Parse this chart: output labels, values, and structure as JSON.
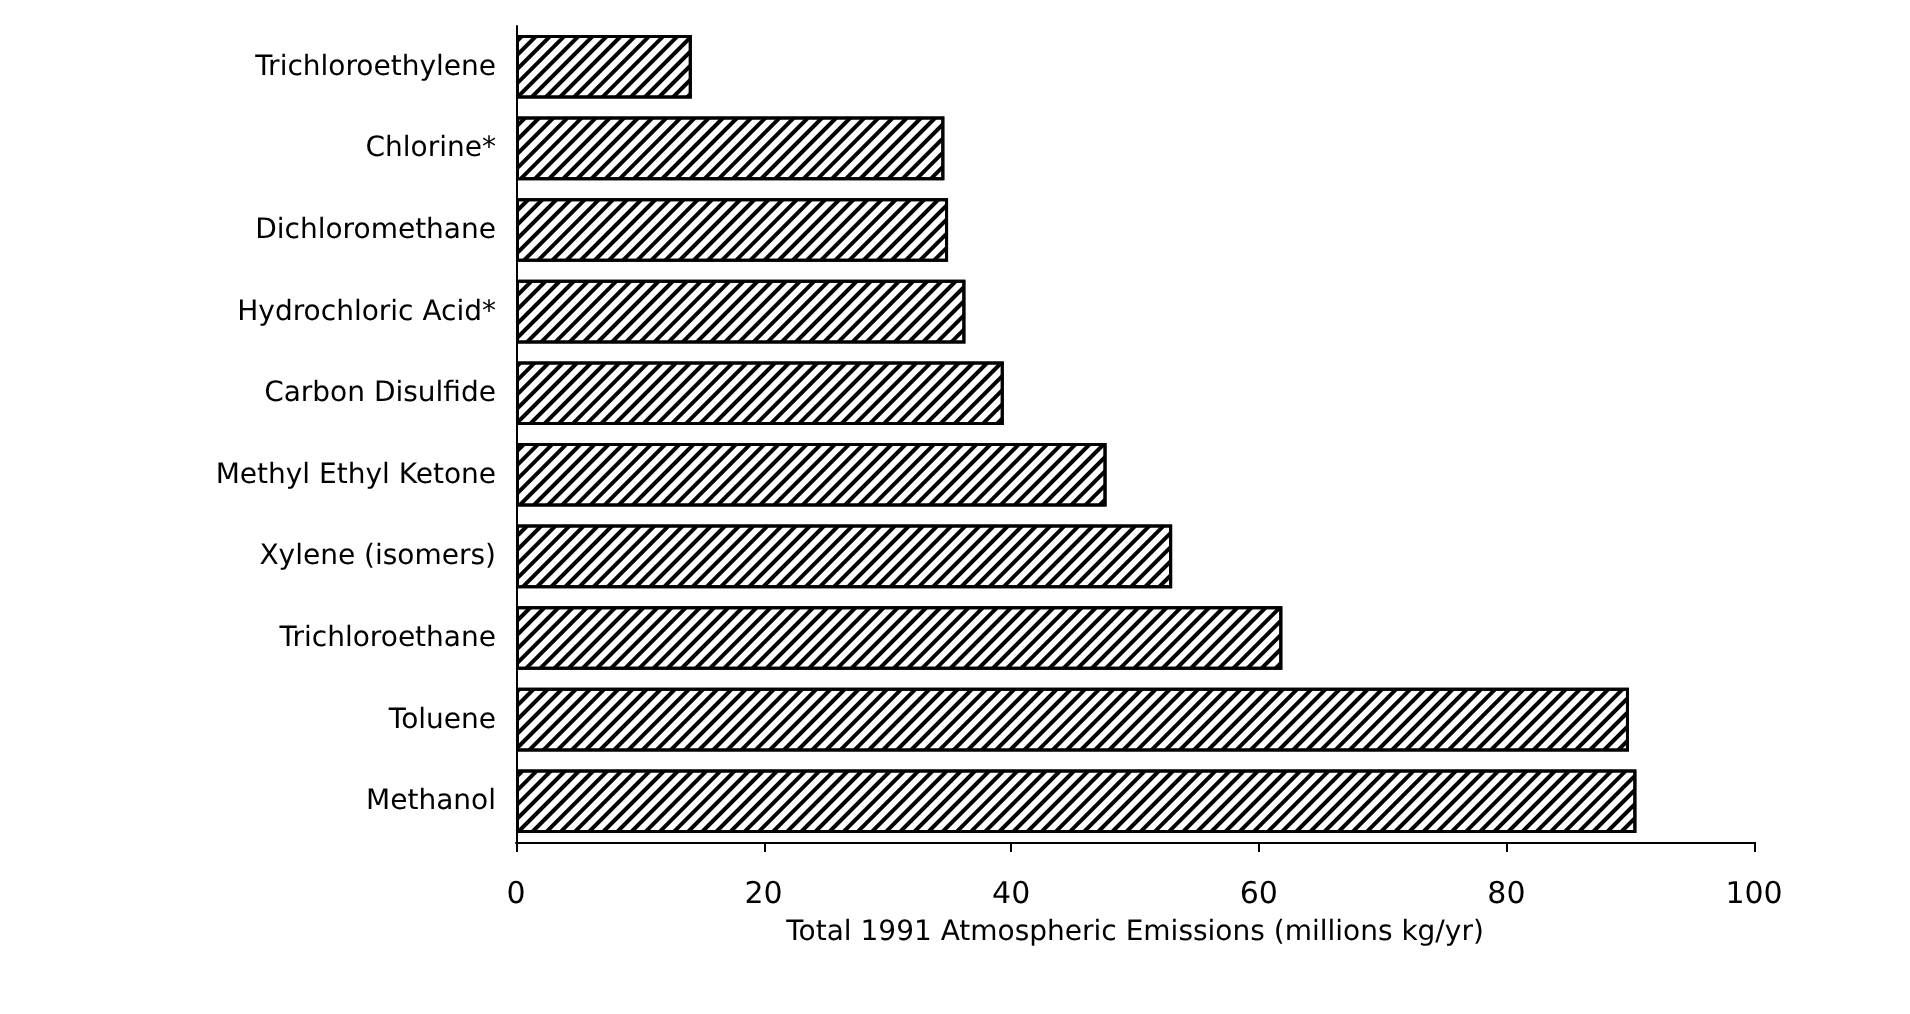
{
  "chart_data": {
    "type": "bar",
    "orientation": "horizontal",
    "xlabel": "Total 1991 Atmospheric Emissions (millions kg/yr)",
    "categories": [
      "Trichloroethylene",
      "Chlorine*",
      "Dichloromethane",
      "Hydrochloric Acid*",
      "Carbon Disulfide",
      "Methyl Ethyl Ketone",
      "Xylene (isomers)",
      "Trichloroethane",
      "Toluene",
      "Methanol"
    ],
    "values": [
      14.2,
      34.6,
      34.9,
      36.3,
      39.4,
      47.7,
      53,
      61.9,
      89.9,
      90.5
    ],
    "color": "#ffffff",
    "xlim": [
      0,
      100
    ],
    "xticks": [
      0,
      20,
      40,
      60,
      80,
      100
    ],
    "grid": false
  }
}
